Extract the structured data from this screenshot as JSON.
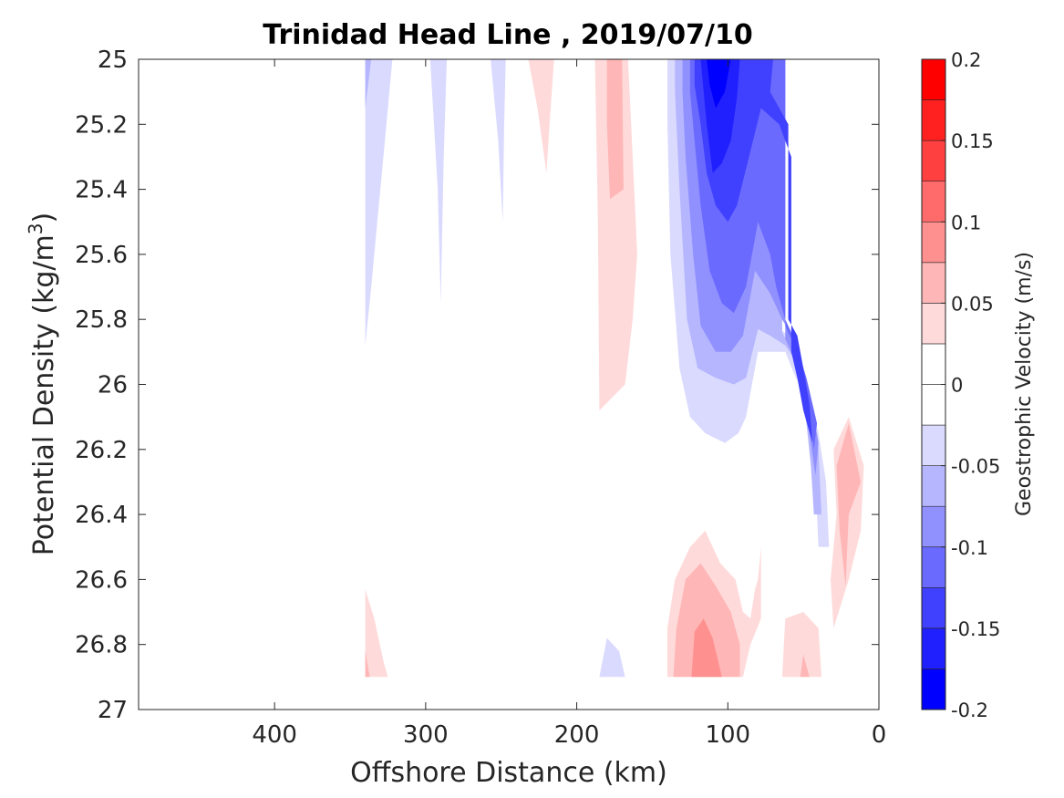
{
  "chart_data": {
    "type": "contourf",
    "title": "Trinidad Head Line , 2019/07/10",
    "xlabel": "Offshore Distance (km)",
    "ylabel": {
      "base": "Potential Density (kg/m",
      "sup": "3",
      "close": ")"
    },
    "x_reversed": true,
    "y_reversed": true,
    "xlim": [
      490,
      0
    ],
    "ylim": [
      25,
      27
    ],
    "xticks": [
      {
        "value": 400,
        "label": "400"
      },
      {
        "value": 300,
        "label": "300"
      },
      {
        "value": 200,
        "label": "200"
      },
      {
        "value": 100,
        "label": "100"
      },
      {
        "value": 0,
        "label": "0"
      }
    ],
    "yticks": [
      {
        "value": 25,
        "label": "25"
      },
      {
        "value": 25.2,
        "label": "25.2"
      },
      {
        "value": 25.4,
        "label": "25.4"
      },
      {
        "value": 25.6,
        "label": "25.6"
      },
      {
        "value": 25.8,
        "label": "25.8"
      },
      {
        "value": 26,
        "label": "26"
      },
      {
        "value": 26.2,
        "label": "26.2"
      },
      {
        "value": 26.4,
        "label": "26.4"
      },
      {
        "value": 26.6,
        "label": "26.6"
      },
      {
        "value": 26.8,
        "label": "26.8"
      },
      {
        "value": 27,
        "label": "27"
      }
    ],
    "colorbar": {
      "label": "Geostrophic Velocity (m/s)",
      "range": [
        -0.2,
        0.2
      ],
      "levels": [
        {
          "from": -0.2,
          "to": -0.175,
          "color": "#0000ff"
        },
        {
          "from": -0.175,
          "to": -0.15,
          "color": "#2020ff"
        },
        {
          "from": -0.15,
          "to": -0.125,
          "color": "#4040ff"
        },
        {
          "from": -0.125,
          "to": -0.1,
          "color": "#6a6aff"
        },
        {
          "from": -0.1,
          "to": -0.075,
          "color": "#9090ff"
        },
        {
          "from": -0.075,
          "to": -0.05,
          "color": "#b6b6ff"
        },
        {
          "from": -0.05,
          "to": -0.025,
          "color": "#dadaff"
        },
        {
          "from": -0.025,
          "to": 0.0,
          "color": "#ffffff"
        },
        {
          "from": 0.0,
          "to": 0.025,
          "color": "#ffffff"
        },
        {
          "from": 0.025,
          "to": 0.05,
          "color": "#ffdada"
        },
        {
          "from": 0.05,
          "to": 0.075,
          "color": "#ffb6b6"
        },
        {
          "from": 0.075,
          "to": 0.1,
          "color": "#ff9090"
        },
        {
          "from": 0.1,
          "to": 0.125,
          "color": "#ff6a6a"
        },
        {
          "from": 0.125,
          "to": 0.15,
          "color": "#ff4040"
        },
        {
          "from": 0.15,
          "to": 0.175,
          "color": "#ff2020"
        },
        {
          "from": 0.175,
          "to": 0.2,
          "color": "#ff0000"
        }
      ],
      "ticks": [
        {
          "value": -0.2,
          "label": "-0.2"
        },
        {
          "value": -0.15,
          "label": "-0.15"
        },
        {
          "value": -0.1,
          "label": "-0.1"
        },
        {
          "value": -0.05,
          "label": "-0.05"
        },
        {
          "value": 0,
          "label": "0"
        },
        {
          "value": 0.05,
          "label": "0.05"
        },
        {
          "value": 0.1,
          "label": "0.1"
        },
        {
          "value": 0.15,
          "label": "0.15"
        },
        {
          "value": 0.2,
          "label": "0.2"
        }
      ]
    },
    "regions": [
      {
        "name": "neg-band-340",
        "velocity": -0.04,
        "color": "#dadaff",
        "points": [
          [
            340,
            25
          ],
          [
            322,
            25
          ],
          [
            328,
            25.3
          ],
          [
            332,
            25.5
          ],
          [
            336,
            25.7
          ],
          [
            340,
            25.88
          ]
        ]
      },
      {
        "name": "neg-band-340-core",
        "velocity": -0.06,
        "color": "#b6b6ff",
        "points": [
          [
            340,
            25
          ],
          [
            336,
            25
          ],
          [
            340,
            25.15
          ]
        ]
      },
      {
        "name": "neg-band-290",
        "velocity": -0.04,
        "color": "#dadaff",
        "points": [
          [
            297,
            25
          ],
          [
            286,
            25
          ],
          [
            288,
            25.3
          ],
          [
            290,
            25.75
          ],
          [
            292,
            25.4
          ]
        ]
      },
      {
        "name": "neg-band-250",
        "velocity": -0.04,
        "color": "#dadaff",
        "points": [
          [
            257,
            25
          ],
          [
            247,
            25
          ],
          [
            248,
            25.2
          ],
          [
            249,
            25.5
          ],
          [
            252,
            25.25
          ]
        ]
      },
      {
        "name": "pos-band-225",
        "velocity": 0.04,
        "color": "#ffdada",
        "points": [
          [
            232,
            25
          ],
          [
            215,
            25
          ],
          [
            218,
            25.2
          ],
          [
            220,
            25.35
          ],
          [
            226,
            25.15
          ]
        ]
      },
      {
        "name": "pos-band-180",
        "velocity": 0.04,
        "color": "#ffdada",
        "points": [
          [
            188,
            25
          ],
          [
            166,
            25
          ],
          [
            160,
            25.6
          ],
          [
            163,
            25.8
          ],
          [
            168,
            26
          ],
          [
            185,
            26.08
          ],
          [
            186,
            25.5
          ]
        ]
      },
      {
        "name": "pos-band-180-core",
        "velocity": 0.06,
        "color": "#ffb6b6",
        "points": [
          [
            180,
            25
          ],
          [
            170,
            25
          ],
          [
            169,
            25.4
          ],
          [
            178,
            25.43
          ],
          [
            180,
            25.2
          ]
        ]
      },
      {
        "name": "neg-shelf-l1",
        "velocity": -0.04,
        "color": "#dadaff",
        "points": [
          [
            140,
            25
          ],
          [
            68,
            25
          ],
          [
            68,
            25.82
          ],
          [
            60,
            25.85
          ],
          [
            55,
            25.9
          ],
          [
            52,
            26.0
          ],
          [
            48,
            26.1
          ],
          [
            45,
            26.2
          ],
          [
            42,
            26.3
          ],
          [
            40,
            26.5
          ],
          [
            33,
            26.5
          ],
          [
            35,
            26.3
          ],
          [
            40,
            26.15
          ],
          [
            45,
            26.05
          ],
          [
            55,
            25.98
          ],
          [
            62,
            25.9
          ],
          [
            70,
            25.9
          ],
          [
            80,
            25.9
          ],
          [
            88,
            26.1
          ],
          [
            93,
            26.15
          ],
          [
            102,
            26.18
          ],
          [
            115,
            26.15
          ],
          [
            125,
            26.1
          ],
          [
            132,
            25.95
          ],
          [
            138,
            25.6
          ],
          [
            140,
            25.2
          ]
        ]
      },
      {
        "name": "neg-shelf-l2",
        "velocity": -0.06,
        "color": "#b6b6ff",
        "points": [
          [
            135,
            25
          ],
          [
            64,
            25
          ],
          [
            64,
            25.84
          ],
          [
            57,
            25.9
          ],
          [
            52,
            26.0
          ],
          [
            48,
            26.12
          ],
          [
            45,
            26.25
          ],
          [
            43,
            26.4
          ],
          [
            38,
            26.4
          ],
          [
            40,
            26.2
          ],
          [
            46,
            26.05
          ],
          [
            52,
            25.95
          ],
          [
            62,
            25.88
          ],
          [
            72,
            25.85
          ],
          [
            80,
            25.83
          ],
          [
            88,
            25.98
          ],
          [
            96,
            26.0
          ],
          [
            108,
            25.98
          ],
          [
            120,
            25.95
          ],
          [
            127,
            25.8
          ],
          [
            132,
            25.4
          ],
          [
            135,
            25.1
          ]
        ]
      },
      {
        "name": "neg-shelf-l3",
        "velocity": -0.08,
        "color": "#9090ff",
        "points": [
          [
            130,
            25
          ],
          [
            62,
            25
          ],
          [
            62,
            25.86
          ],
          [
            56,
            25.92
          ],
          [
            50,
            26.02
          ],
          [
            46,
            26.15
          ],
          [
            42,
            26.28
          ],
          [
            40,
            26.18
          ],
          [
            46,
            26.02
          ],
          [
            54,
            25.88
          ],
          [
            64,
            25.8
          ],
          [
            72,
            25.72
          ],
          [
            82,
            25.65
          ],
          [
            90,
            25.85
          ],
          [
            98,
            25.9
          ],
          [
            108,
            25.9
          ],
          [
            118,
            25.82
          ],
          [
            123,
            25.6
          ],
          [
            128,
            25.3
          ],
          [
            130,
            25.1
          ]
        ]
      },
      {
        "name": "neg-shelf-l4",
        "velocity": -0.11,
        "color": "#6a6aff",
        "points": [
          [
            125,
            25
          ],
          [
            62,
            25
          ],
          [
            62,
            25.82
          ],
          [
            56,
            25.88
          ],
          [
            50,
            25.98
          ],
          [
            46,
            26.1
          ],
          [
            43,
            26.2
          ],
          [
            41,
            26.12
          ],
          [
            48,
            25.98
          ],
          [
            56,
            25.86
          ],
          [
            62,
            25.8
          ],
          [
            68,
            25.7
          ],
          [
            72,
            25.6
          ],
          [
            80,
            25.5
          ],
          [
            88,
            25.7
          ],
          [
            96,
            25.78
          ],
          [
            104,
            25.75
          ],
          [
            112,
            25.65
          ],
          [
            118,
            25.45
          ],
          [
            122,
            25.25
          ],
          [
            125,
            25.1
          ]
        ]
      },
      {
        "name": "neg-shelf-l5",
        "velocity": -0.14,
        "color": "#4040ff",
        "points": [
          [
            122,
            25
          ],
          [
            70,
            25
          ],
          [
            72,
            25.1
          ],
          [
            60,
            25.2
          ],
          [
            60,
            25.8
          ],
          [
            54,
            25.85
          ],
          [
            50,
            25.95
          ],
          [
            46,
            26.06
          ],
          [
            44,
            26.18
          ],
          [
            50,
            26.08
          ],
          [
            54,
            25.98
          ],
          [
            58,
            25.9
          ],
          [
            58,
            25.3
          ],
          [
            66,
            25.2
          ],
          [
            78,
            25.15
          ],
          [
            86,
            25.3
          ],
          [
            94,
            25.45
          ],
          [
            100,
            25.5
          ],
          [
            108,
            25.45
          ],
          [
            114,
            25.35
          ],
          [
            118,
            25.2
          ],
          [
            122,
            25.08
          ]
        ]
      },
      {
        "name": "neg-shelf-l6",
        "velocity": -0.16,
        "color": "#2020ff",
        "points": [
          [
            118,
            25
          ],
          [
            92,
            25
          ],
          [
            94,
            25.12
          ],
          [
            98,
            25.25
          ],
          [
            104,
            25.32
          ],
          [
            110,
            25.35
          ],
          [
            114,
            25.2
          ]
        ]
      },
      {
        "name": "neg-shelf-l7",
        "velocity": -0.19,
        "color": "#0000ff",
        "points": [
          [
            114,
            25
          ],
          [
            98,
            25
          ],
          [
            102,
            25.1
          ],
          [
            108,
            25.15
          ],
          [
            112,
            25.08
          ]
        ]
      },
      {
        "name": "pos-nearshore-a",
        "velocity": 0.04,
        "color": "#ffdada",
        "points": [
          [
            30,
            26.2
          ],
          [
            20,
            26.1
          ],
          [
            10,
            26.25
          ],
          [
            12,
            26.45
          ],
          [
            20,
            26.6
          ],
          [
            30,
            26.75
          ],
          [
            32,
            26.6
          ],
          [
            28,
            26.4
          ]
        ]
      },
      {
        "name": "pos-nearshore-a-core",
        "velocity": 0.06,
        "color": "#ffb6b6",
        "points": [
          [
            28,
            26.25
          ],
          [
            20,
            26.12
          ],
          [
            12,
            26.3
          ],
          [
            20,
            26.4
          ],
          [
            22,
            26.62
          ],
          [
            26,
            26.45
          ]
        ]
      },
      {
        "name": "pos-bottom-mid",
        "velocity": 0.04,
        "color": "#ffdada",
        "points": [
          [
            140,
            26.9
          ],
          [
            140,
            26.75
          ],
          [
            135,
            26.6
          ],
          [
            125,
            26.5
          ],
          [
            115,
            26.45
          ],
          [
            105,
            26.55
          ],
          [
            95,
            26.6
          ],
          [
            90,
            26.7
          ],
          [
            85,
            26.72
          ],
          [
            82,
            26.63
          ],
          [
            80,
            26.6
          ],
          [
            78,
            26.5
          ],
          [
            78,
            26.72
          ],
          [
            85,
            26.8
          ],
          [
            90,
            26.9
          ]
        ]
      },
      {
        "name": "pos-bottom-mid-l2",
        "velocity": 0.06,
        "color": "#ffb6b6",
        "points": [
          [
            136,
            26.9
          ],
          [
            134,
            26.75
          ],
          [
            128,
            26.6
          ],
          [
            118,
            26.55
          ],
          [
            108,
            26.62
          ],
          [
            98,
            26.7
          ],
          [
            92,
            26.8
          ],
          [
            92,
            26.9
          ]
        ]
      },
      {
        "name": "pos-bottom-mid-l3",
        "velocity": 0.09,
        "color": "#ff9090",
        "points": [
          [
            124,
            26.9
          ],
          [
            122,
            26.76
          ],
          [
            116,
            26.72
          ],
          [
            110,
            26.78
          ],
          [
            104,
            26.9
          ]
        ]
      },
      {
        "name": "pos-bottom-340",
        "velocity": 0.04,
        "color": "#ffdada",
        "points": [
          [
            340,
            26.9
          ],
          [
            340,
            26.63
          ],
          [
            334,
            26.72
          ],
          [
            328,
            26.85
          ],
          [
            325,
            26.9
          ]
        ]
      },
      {
        "name": "pos-bottom-340-core",
        "velocity": 0.06,
        "color": "#ffb6b6",
        "points": [
          [
            340,
            26.9
          ],
          [
            340,
            26.82
          ],
          [
            337,
            26.9
          ]
        ]
      },
      {
        "name": "neg-bottom-180",
        "velocity": -0.04,
        "color": "#dadaff",
        "points": [
          [
            185,
            26.9
          ],
          [
            180,
            26.78
          ],
          [
            172,
            26.82
          ],
          [
            168,
            26.9
          ]
        ]
      },
      {
        "name": "pos-bottom-50",
        "velocity": 0.04,
        "color": "#ffdada",
        "points": [
          [
            64,
            26.9
          ],
          [
            62,
            26.72
          ],
          [
            50,
            26.7
          ],
          [
            40,
            26.75
          ],
          [
            38,
            26.9
          ]
        ]
      },
      {
        "name": "pos-bottom-50-core",
        "velocity": 0.06,
        "color": "#ffb6b6",
        "points": [
          [
            52,
            26.9
          ],
          [
            50,
            26.83
          ],
          [
            46,
            26.9
          ]
        ]
      }
    ]
  }
}
